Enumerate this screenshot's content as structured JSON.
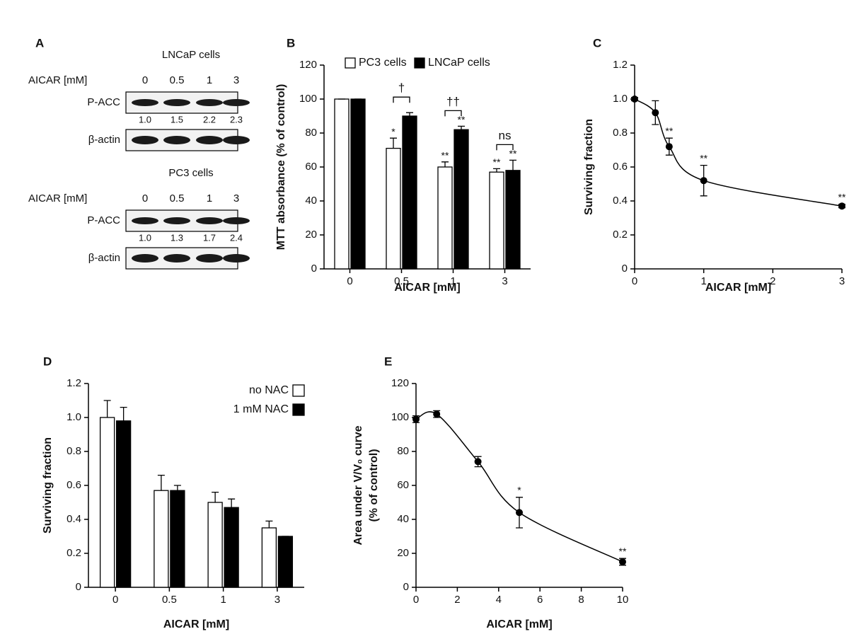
{
  "western_blot": {
    "panel": "A",
    "blots": [
      {
        "title": "LNCaP cells",
        "dose_label": "AICAR [mM]",
        "doses": [
          "0",
          "0.5",
          "1",
          "3"
        ],
        "rows": [
          "P-ACC",
          "β-actin"
        ],
        "quantities": [
          "1.0",
          "1.5",
          "2.2",
          "2.3"
        ]
      },
      {
        "title": "PC3 cells",
        "dose_label": "AICAR [mM]",
        "doses": [
          "0",
          "0.5",
          "1",
          "3"
        ],
        "rows": [
          "P-ACC",
          "β-actin"
        ],
        "quantities": [
          "1.0",
          "1.3",
          "1.7",
          "2.4"
        ]
      }
    ]
  },
  "chart_data": [
    {
      "type": "bar",
      "panel": "B",
      "xlabel": "AICAR [mM]",
      "ylabel": [
        "MTT absorbance (% of control)"
      ],
      "categories": [
        "0",
        "0.5",
        "1",
        "3"
      ],
      "series": [
        {
          "name": "PC3 cells",
          "color": "#ffffff",
          "values": [
            100,
            71,
            60,
            57
          ],
          "errors": [
            0,
            6,
            3,
            2
          ],
          "significance": [
            null,
            "*",
            "**",
            "**"
          ]
        },
        {
          "name": "LNCaP cells",
          "color": "#000000",
          "values": [
            100,
            90,
            82,
            58
          ],
          "errors": [
            0,
            2,
            2,
            6
          ],
          "significance": [
            null,
            null,
            "**",
            "**"
          ]
        }
      ],
      "bracket_labels": [
        null,
        "†",
        "††",
        "ns"
      ],
      "ylim": [
        0,
        120
      ],
      "yticks": [
        0,
        20,
        40,
        60,
        80,
        100,
        120
      ],
      "legend": "top"
    },
    {
      "type": "scatter",
      "panel": "C",
      "xlabel": "AICAR [mM]",
      "ylabel": [
        "Surviving fraction"
      ],
      "series": [
        {
          "color": "#000000",
          "x": [
            0,
            0.3,
            0.5,
            1,
            3
          ],
          "values": [
            1.0,
            0.92,
            0.72,
            0.52,
            0.37
          ],
          "errors": [
            0.01,
            0.07,
            0.05,
            0.09,
            0.01
          ],
          "significance": [
            null,
            null,
            "**",
            "**",
            "**"
          ]
        }
      ],
      "xlim": [
        0,
        3
      ],
      "xticks": [
        0,
        1,
        2,
        3
      ],
      "ylim": [
        0,
        1.2
      ],
      "yticks": [
        0,
        0.2,
        0.4,
        0.6,
        0.8,
        {
          "value": 1,
          "label": "1.0"
        },
        1.2
      ]
    },
    {
      "type": "bar",
      "panel": "D",
      "xlabel": "AICAR [mM]",
      "ylabel": [
        "Surviving fraction"
      ],
      "categories": [
        "0",
        "0.5",
        "1",
        "3"
      ],
      "series": [
        {
          "name": "no NAC",
          "color": "#ffffff",
          "values": [
            1.0,
            0.57,
            0.5,
            0.35
          ],
          "errors": [
            0.1,
            0.09,
            0.06,
            0.04
          ]
        },
        {
          "name": "1 mM NAC",
          "color": "#000000",
          "values": [
            0.98,
            0.57,
            0.47,
            0.3
          ],
          "errors": [
            0.08,
            0.03,
            0.05,
            0
          ]
        }
      ],
      "ylim": [
        0,
        1.2
      ],
      "yticks": [
        0,
        0.2,
        0.4,
        0.6,
        0.8,
        {
          "value": 1,
          "label": "1.0"
        },
        1.2
      ],
      "legend": "upper right"
    },
    {
      "type": "scatter",
      "panel": "E",
      "xlabel": "AICAR [mM]",
      "ylabel": [
        "Area under V/V₀ curve",
        "(% of control)"
      ],
      "series": [
        {
          "color": "#000000",
          "x": [
            0,
            1,
            3,
            5,
            10
          ],
          "values": [
            99,
            102,
            74,
            44,
            15
          ],
          "errors": [
            2,
            2,
            3,
            9,
            2
          ],
          "significance": [
            null,
            null,
            null,
            "*",
            "**"
          ]
        }
      ],
      "xlim": [
        0,
        10
      ],
      "xticks": [
        0,
        2,
        4,
        6,
        8,
        10
      ],
      "ylim": [
        0,
        120
      ],
      "yticks": [
        0,
        20,
        40,
        60,
        80,
        100,
        120
      ]
    }
  ]
}
